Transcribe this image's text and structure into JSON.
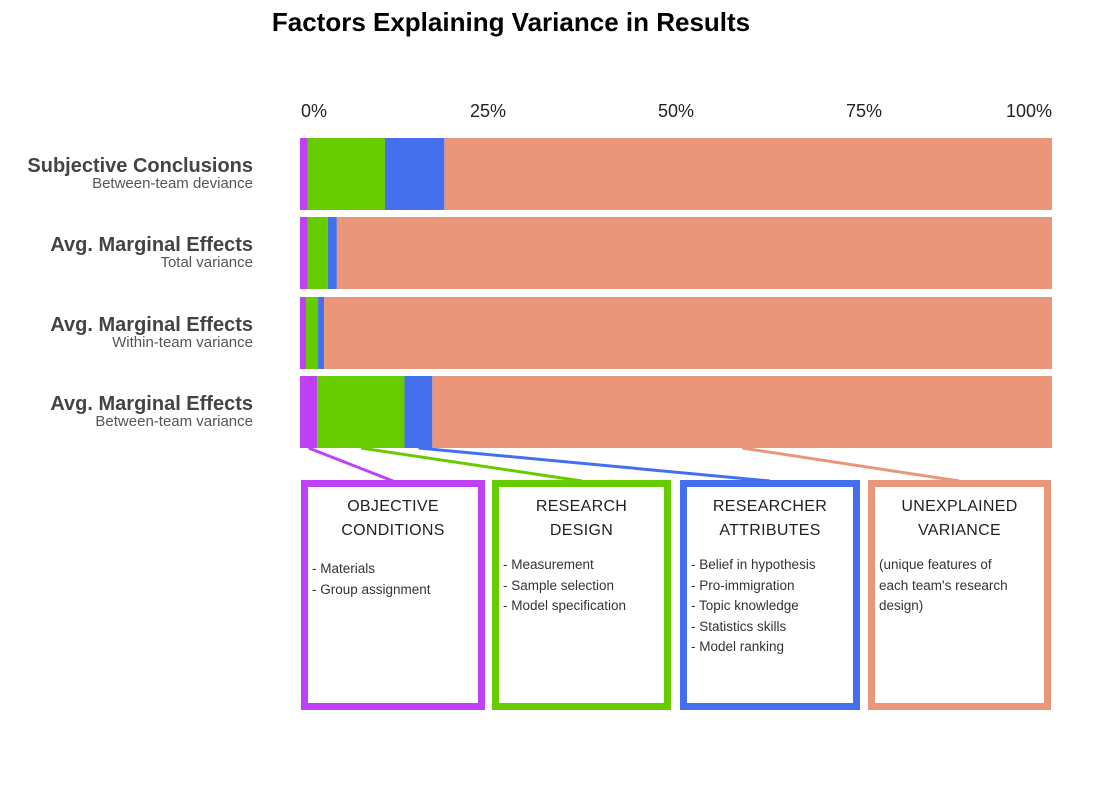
{
  "chart_data": {
    "type": "bar",
    "orientation": "horizontal",
    "stacked": true,
    "title": "Factors Explaining Variance in Results",
    "x_axis": {
      "position": "top",
      "ticks": [
        "0%",
        "25%",
        "50%",
        "75%",
        "100%"
      ],
      "range": [
        0,
        100
      ]
    },
    "categories": [
      {
        "title": "Subjective Conclusions",
        "subtitle": "Between-team deviance"
      },
      {
        "title": "Avg. Marginal Effects",
        "subtitle": "Total variance"
      },
      {
        "title": "Avg. Marginal Effects",
        "subtitle": "Within-team variance"
      },
      {
        "title": "Avg. Marginal Effects",
        "subtitle": "Between-team variance"
      }
    ],
    "series": [
      {
        "key": "objective",
        "color": "#BF40F5",
        "values": [
          1.0,
          1.0,
          0.8,
          2.3
        ]
      },
      {
        "key": "design",
        "color": "#66CC00",
        "values": [
          10.3,
          2.7,
          1.6,
          11.6
        ]
      },
      {
        "key": "attributes",
        "color": "#4470EE",
        "values": [
          7.9,
          1.2,
          0.8,
          3.7
        ]
      },
      {
        "key": "unexplained",
        "color": "#E9967A",
        "values": [
          80.8,
          95.1,
          96.8,
          82.4
        ]
      }
    ],
    "grid": false,
    "legend": "explanatory boxes below chart"
  },
  "boxes": [
    {
      "title_lines": [
        "OBJECTIVE",
        "CONDITIONS"
      ],
      "color": "#BF40F5",
      "items": [
        "- Materials",
        "- Group assignment"
      ]
    },
    {
      "title_lines": [
        "RESEARCH",
        "DESIGN"
      ],
      "color": "#66CC00",
      "items": [
        "- Measurement",
        "- Sample selection",
        "- Model specification"
      ]
    },
    {
      "title_lines": [
        "RESEARCHER",
        "ATTRIBUTES"
      ],
      "color": "#4470EE",
      "items": [
        "- Belief in hypothesis",
        "- Pro-immigration",
        "- Topic knowledge",
        "- Statistics skills",
        "- Model ranking"
      ]
    },
    {
      "title_lines": [
        "UNEXPLAINED",
        "VARIANCE"
      ],
      "color": "#E9967A",
      "items": [
        "(unique features of",
        "each team's research",
        "design)"
      ]
    }
  ]
}
